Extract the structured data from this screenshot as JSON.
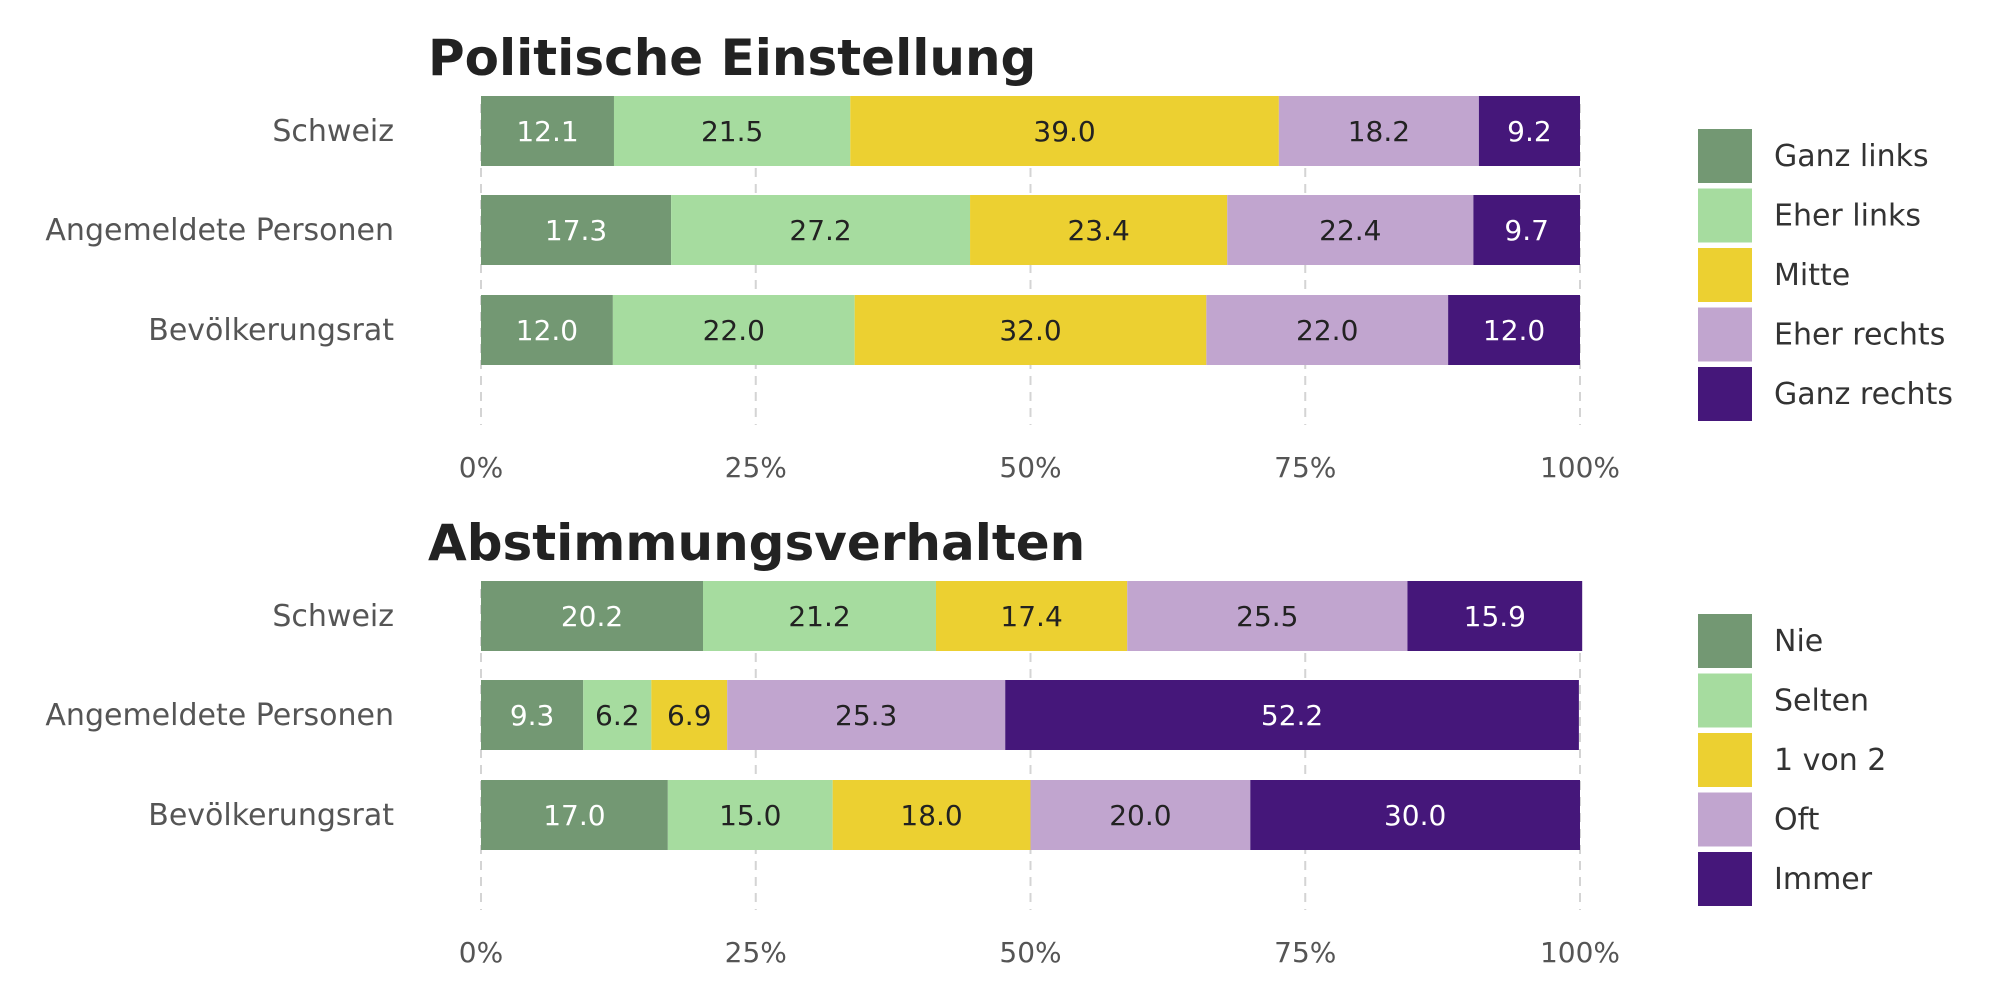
{
  "chart_data": [
    {
      "type": "bar",
      "orientation": "horizontal",
      "stacked": true,
      "title": "Politische Einstellung",
      "categories": [
        "Schweiz",
        "Angemeldete Personen",
        "Bevölkerungsrat"
      ],
      "series": [
        {
          "name": "Ganz links",
          "color": "#739873",
          "label_color": "#ffffff",
          "values": [
            12.1,
            17.3,
            12.0
          ]
        },
        {
          "name": "Eher links",
          "color": "#a6dc9f",
          "label_color": "#222222",
          "values": [
            21.5,
            27.2,
            22.0
          ]
        },
        {
          "name": "Mitte",
          "color": "#ecd031",
          "label_color": "#222222",
          "values": [
            39.0,
            23.4,
            32.0
          ]
        },
        {
          "name": "Eher rechts",
          "color": "#c1a5cf",
          "label_color": "#222222",
          "values": [
            18.2,
            22.4,
            22.0
          ]
        },
        {
          "name": "Ganz rechts",
          "color": "#45177a",
          "label_color": "#ffffff",
          "values": [
            9.2,
            9.7,
            12.0
          ]
        }
      ],
      "xlim": [
        0,
        100
      ],
      "xticks": [
        "0%",
        "25%",
        "50%",
        "75%",
        "100%"
      ],
      "grid": true,
      "legend_position": "right"
    },
    {
      "type": "bar",
      "orientation": "horizontal",
      "stacked": true,
      "title": "Abstimmungsverhalten",
      "categories": [
        "Schweiz",
        "Angemeldete Personen",
        "Bevölkerungsrat"
      ],
      "series": [
        {
          "name": "Nie",
          "color": "#739873",
          "label_color": "#ffffff",
          "values": [
            20.2,
            9.3,
            17.0
          ]
        },
        {
          "name": "Selten",
          "color": "#a6dc9f",
          "label_color": "#222222",
          "values": [
            21.2,
            6.2,
            15.0
          ]
        },
        {
          "name": "1 von 2",
          "color": "#ecd031",
          "label_color": "#222222",
          "values": [
            17.4,
            6.9,
            18.0
          ]
        },
        {
          "name": "Oft",
          "color": "#c1a5cf",
          "label_color": "#222222",
          "values": [
            25.5,
            25.3,
            20.0
          ]
        },
        {
          "name": "Immer",
          "color": "#45177a",
          "label_color": "#ffffff",
          "values": [
            15.9,
            52.2,
            30.0
          ]
        }
      ],
      "xlim": [
        0,
        100
      ],
      "xticks": [
        "0%",
        "25%",
        "50%",
        "75%",
        "100%"
      ],
      "grid": true,
      "legend_position": "right"
    }
  ]
}
